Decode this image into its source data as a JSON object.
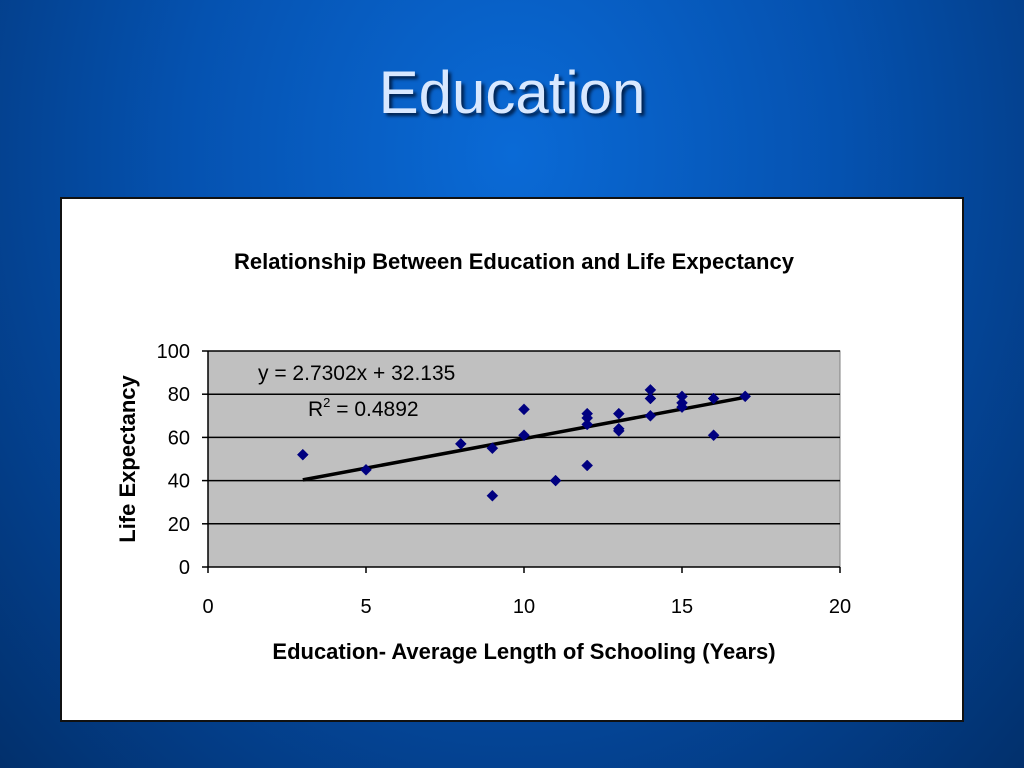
{
  "slide": {
    "title": "Education"
  },
  "chart_data": {
    "type": "scatter",
    "title": "Relationship Between Education and Life Expectancy",
    "xlabel": "Education- Average Length of Schooling (Years)",
    "ylabel": "Life Expectancy",
    "xlim": [
      0,
      20
    ],
    "ylim": [
      0,
      100
    ],
    "x_ticks": [
      "0",
      "5",
      "10",
      "15",
      "20"
    ],
    "y_ticks": [
      "0",
      "20",
      "40",
      "60",
      "80",
      "100"
    ],
    "grid": "horizontal",
    "plot_background": "#c0c0c0",
    "marker_color": "#000080",
    "trendline": {
      "equation": "y = 2.7302x + 32.135",
      "r2_label": "R",
      "r2_sup": "2",
      "r2_value": " = 0.4892",
      "slope": 2.7302,
      "intercept": 32.135,
      "x_range": [
        3,
        17
      ]
    },
    "points": [
      {
        "x": 3,
        "y": 52
      },
      {
        "x": 5,
        "y": 45
      },
      {
        "x": 8,
        "y": 57
      },
      {
        "x": 9,
        "y": 55
      },
      {
        "x": 9,
        "y": 33
      },
      {
        "x": 10,
        "y": 73
      },
      {
        "x": 10,
        "y": 61
      },
      {
        "x": 11,
        "y": 40
      },
      {
        "x": 12,
        "y": 71
      },
      {
        "x": 12,
        "y": 69
      },
      {
        "x": 12,
        "y": 66
      },
      {
        "x": 12,
        "y": 47
      },
      {
        "x": 13,
        "y": 71
      },
      {
        "x": 13,
        "y": 64
      },
      {
        "x": 13,
        "y": 63
      },
      {
        "x": 14,
        "y": 82
      },
      {
        "x": 14,
        "y": 78
      },
      {
        "x": 14,
        "y": 70
      },
      {
        "x": 15,
        "y": 79
      },
      {
        "x": 15,
        "y": 76
      },
      {
        "x": 15,
        "y": 74
      },
      {
        "x": 16,
        "y": 78
      },
      {
        "x": 16,
        "y": 61
      },
      {
        "x": 17,
        "y": 79
      }
    ]
  }
}
